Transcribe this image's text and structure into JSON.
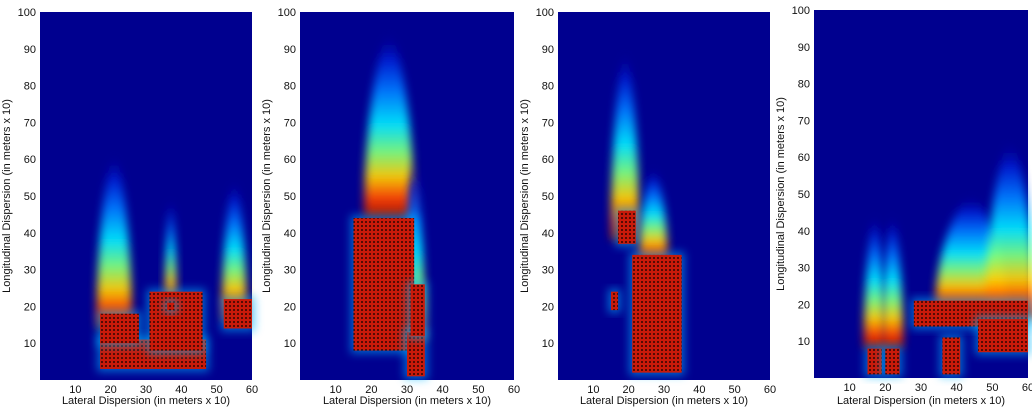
{
  "chart_data": [
    {
      "type": "heatmap",
      "xlabel": "Lateral Dispersion (in meters x 10)",
      "ylabel": "Longitudinal Dispersion (in meters x 10)",
      "xlim": [
        0,
        60
      ],
      "ylim": [
        0,
        100
      ],
      "xticks": [
        "10",
        "20",
        "30",
        "40",
        "50",
        "60"
      ],
      "yticks": [
        "10",
        "20",
        "30",
        "40",
        "50",
        "60",
        "70",
        "80",
        "90",
        "100"
      ],
      "colormap": "jet",
      "background_color": "#00008f",
      "plumes": [
        {
          "x": 21,
          "y0": 14,
          "top": 62,
          "w": 5
        },
        {
          "x": 37,
          "y0": 20,
          "top": 50,
          "w": 1.6
        },
        {
          "x": 55,
          "y0": 16,
          "top": 55,
          "w": 3.5
        }
      ],
      "sources": [
        {
          "x": 17,
          "y": 3,
          "w": 30,
          "h": 8
        },
        {
          "x": 17,
          "y": 10,
          "w": 11,
          "h": 8
        },
        {
          "x": 31,
          "y": 8,
          "w": 15,
          "h": 16
        },
        {
          "x": 52,
          "y": 14,
          "w": 8,
          "h": 8
        },
        {
          "x": 36,
          "y": 19,
          "w": 2,
          "h": 2
        }
      ]
    },
    {
      "type": "heatmap",
      "xlabel": "Lateral Dispersion (in meters x 10)",
      "ylabel": "Longitudinal Dispersion (in meters x 10)",
      "xlim": [
        0,
        60
      ],
      "ylim": [
        0,
        100
      ],
      "xticks": [
        "10",
        "20",
        "30",
        "40",
        "50",
        "60"
      ],
      "yticks": [
        "10",
        "20",
        "30",
        "40",
        "50",
        "60",
        "70",
        "80",
        "90",
        "100"
      ],
      "colormap": "jet",
      "background_color": "#00008f",
      "plumes": [
        {
          "x": 25,
          "y0": 44,
          "top": 95,
          "w": 7
        },
        {
          "x": 32,
          "y0": 10,
          "top": 60,
          "w": 3
        }
      ],
      "sources": [
        {
          "x": 15,
          "y": 8,
          "w": 17,
          "h": 36
        },
        {
          "x": 30,
          "y": 1,
          "w": 5,
          "h": 12
        },
        {
          "x": 31,
          "y": 12,
          "w": 4,
          "h": 14
        }
      ]
    },
    {
      "type": "heatmap",
      "xlabel": "Lateral Dispersion (in meters x 10)",
      "ylabel": "Longitudinal Dispersion (in meters x 10)",
      "xlim": [
        0,
        60
      ],
      "ylim": [
        0,
        100
      ],
      "xticks": [
        "10",
        "20",
        "30",
        "40",
        "50",
        "60"
      ],
      "yticks": [
        "10",
        "20",
        "30",
        "40",
        "50",
        "60",
        "70",
        "80",
        "90",
        "100"
      ],
      "colormap": "jet",
      "background_color": "#00008f",
      "plumes": [
        {
          "x": 19,
          "y0": 38,
          "top": 90,
          "w": 4
        },
        {
          "x": 27,
          "y0": 32,
          "top": 58,
          "w": 4
        }
      ],
      "sources": [
        {
          "x": 17,
          "y": 37,
          "w": 5,
          "h": 9
        },
        {
          "x": 21,
          "y": 2,
          "w": 14,
          "h": 32
        },
        {
          "x": 15,
          "y": 19,
          "w": 2,
          "h": 5
        }
      ]
    },
    {
      "type": "heatmap",
      "xlabel": "Lateral Dispersion (in meters x 10)",
      "ylabel": "Longitudinal Dispersion (in meters x 10)",
      "xlim": [
        0,
        60
      ],
      "ylim": [
        0,
        100
      ],
      "xticks": [
        "10",
        "20",
        "30",
        "40",
        "50",
        "60"
      ],
      "yticks": [
        "10",
        "20",
        "30",
        "40",
        "50",
        "60",
        "70",
        "80",
        "90",
        "100"
      ],
      "colormap": "jet",
      "background_color": "#00008f",
      "plumes": [
        {
          "x": 17,
          "y0": 8,
          "top": 45,
          "w": 3
        },
        {
          "x": 22,
          "y0": 8,
          "top": 45,
          "w": 3
        },
        {
          "x": 44,
          "y0": 18,
          "top": 50,
          "w": 10
        },
        {
          "x": 55,
          "y0": 16,
          "top": 65,
          "w": 7
        }
      ],
      "sources": [
        {
          "x": 15,
          "y": 1,
          "w": 4,
          "h": 7
        },
        {
          "x": 20,
          "y": 1,
          "w": 4,
          "h": 7
        },
        {
          "x": 28,
          "y": 14,
          "w": 32,
          "h": 7
        },
        {
          "x": 46,
          "y": 7,
          "w": 14,
          "h": 9
        },
        {
          "x": 36,
          "y": 1,
          "w": 5,
          "h": 10
        }
      ]
    }
  ]
}
